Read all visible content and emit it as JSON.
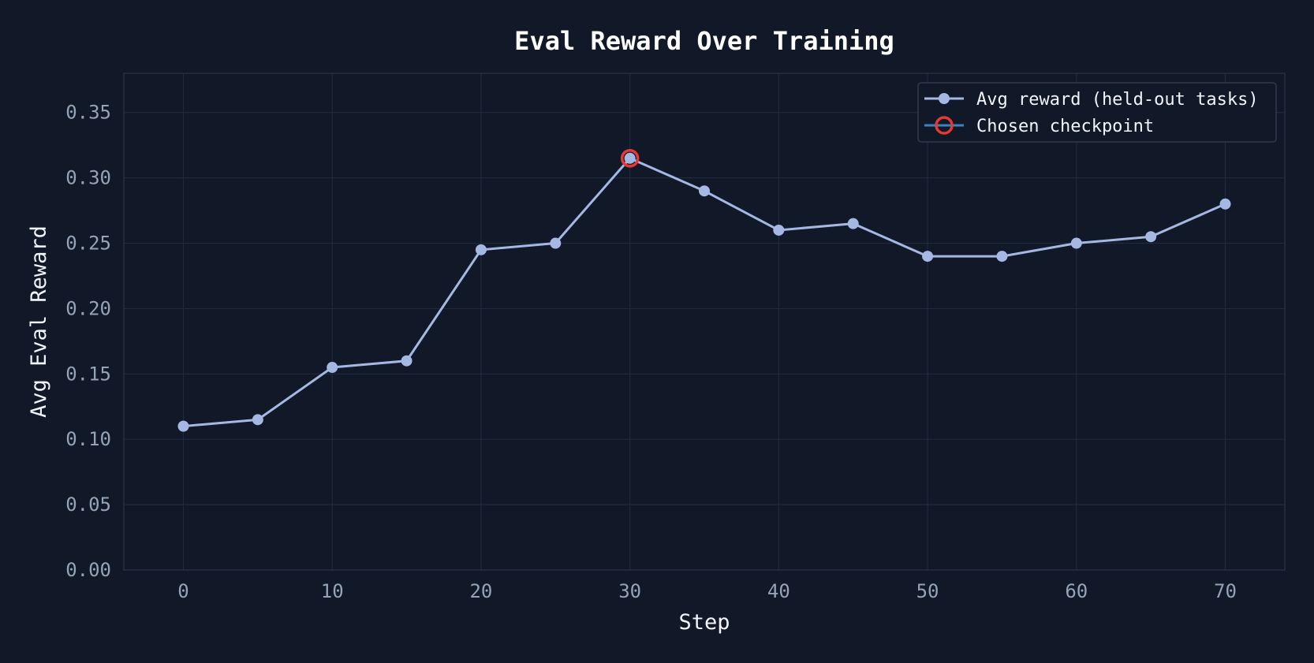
{
  "chart_data": {
    "type": "line",
    "title": "Eval Reward Over Training",
    "xlabel": "Step",
    "ylabel": "Avg Eval Reward",
    "xlim": [
      -4,
      74
    ],
    "ylim": [
      0,
      0.38
    ],
    "x_ticks": [
      0,
      10,
      20,
      30,
      40,
      50,
      60,
      70
    ],
    "y_ticks": [
      0.0,
      0.05,
      0.1,
      0.15,
      0.2,
      0.25,
      0.3,
      0.35
    ],
    "x_tick_labels": [
      "0",
      "10",
      "20",
      "30",
      "40",
      "50",
      "60",
      "70"
    ],
    "y_tick_labels": [
      "0.00",
      "0.05",
      "0.10",
      "0.15",
      "0.20",
      "0.25",
      "0.30",
      "0.35"
    ],
    "grid": true,
    "legend_position": "top-right",
    "series": [
      {
        "name": "Avg reward (held-out tasks)",
        "color": "#a5b8e3",
        "x": [
          0,
          5,
          10,
          15,
          20,
          25,
          30,
          35,
          40,
          45,
          50,
          55,
          60,
          65,
          70
        ],
        "y": [
          0.11,
          0.115,
          0.155,
          0.16,
          0.245,
          0.25,
          0.315,
          0.29,
          0.26,
          0.265,
          0.24,
          0.24,
          0.25,
          0.255,
          0.28
        ]
      }
    ],
    "highlight": {
      "name": "Chosen checkpoint",
      "x": 30,
      "y": 0.315,
      "color": "#e53935",
      "legend_line_color": "#3b82c4"
    }
  },
  "colors": {
    "background": "#111827",
    "plot_background": "#111827",
    "grid": "#1f2a3b",
    "axis_frame": "#2a3547",
    "legend_border": "#2f3a4c"
  }
}
